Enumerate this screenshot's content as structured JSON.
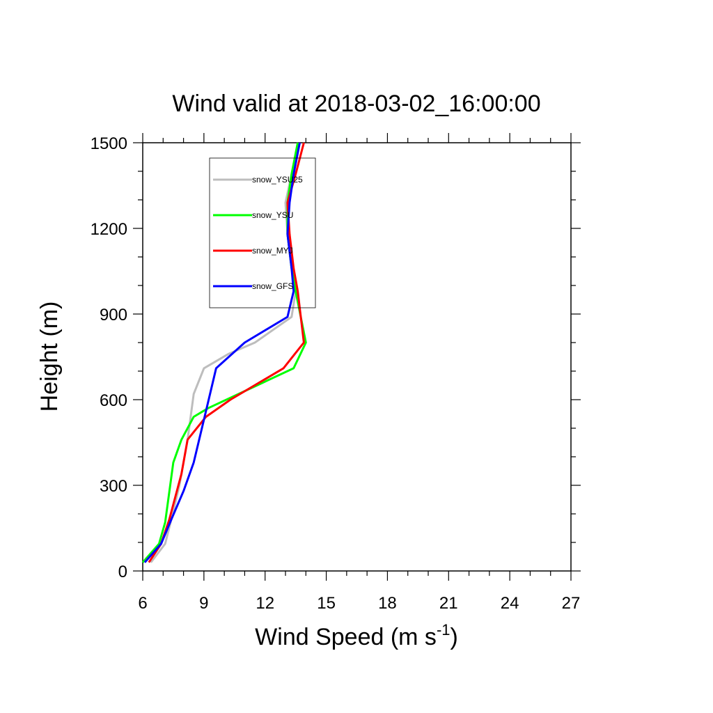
{
  "chart_data": {
    "type": "line",
    "title": "Wind valid at 2018-03-02_16:00:00",
    "xlabel": "Wind Speed (m s",
    "xlabel_sup": "-1",
    "xlabel_end": ")",
    "ylabel": "Height (m)",
    "xlim": [
      6,
      27
    ],
    "ylim": [
      0,
      1500
    ],
    "xticks": [
      6,
      9,
      12,
      15,
      18,
      21,
      24,
      27
    ],
    "yticks": [
      0,
      300,
      600,
      900,
      1200,
      1500
    ],
    "grid": false,
    "legend_position": "top-left",
    "series": [
      {
        "name": "snow_YSU25",
        "color": "#bdbdbd",
        "points": [
          [
            6.4,
            30
          ],
          [
            7.1,
            95
          ],
          [
            7.4,
            180
          ],
          [
            7.8,
            300
          ],
          [
            8.2,
            460
          ],
          [
            8.5,
            620
          ],
          [
            9.0,
            710
          ],
          [
            10.2,
            760
          ],
          [
            11.5,
            800
          ],
          [
            13.3,
            890
          ],
          [
            13.5,
            980
          ],
          [
            13.3,
            1060
          ],
          [
            13.1,
            1180
          ],
          [
            13.0,
            1290
          ],
          [
            13.3,
            1390
          ],
          [
            13.6,
            1500
          ]
        ]
      },
      {
        "name": "snow_YSU",
        "color": "#00ff00",
        "points": [
          [
            6.0,
            30
          ],
          [
            6.8,
            95
          ],
          [
            7.1,
            170
          ],
          [
            7.5,
            380
          ],
          [
            7.9,
            460
          ],
          [
            8.5,
            540
          ],
          [
            9.2,
            570
          ],
          [
            11.3,
            640
          ],
          [
            13.4,
            710
          ],
          [
            14.0,
            800
          ],
          [
            13.5,
            980
          ],
          [
            13.3,
            1060
          ],
          [
            13.1,
            1180
          ],
          [
            13.1,
            1290
          ],
          [
            13.3,
            1390
          ],
          [
            13.6,
            1500
          ]
        ]
      },
      {
        "name": "snow_MYJ",
        "color": "#ff0000",
        "points": [
          [
            6.3,
            30
          ],
          [
            6.9,
            95
          ],
          [
            7.3,
            180
          ],
          [
            7.9,
            340
          ],
          [
            8.2,
            460
          ],
          [
            9.1,
            540
          ],
          [
            10.3,
            600
          ],
          [
            12.9,
            710
          ],
          [
            13.9,
            800
          ],
          [
            13.6,
            980
          ],
          [
            13.4,
            1060
          ],
          [
            13.2,
            1180
          ],
          [
            13.1,
            1290
          ],
          [
            13.5,
            1390
          ],
          [
            13.9,
            1500
          ]
        ]
      },
      {
        "name": "snow_GFS",
        "color": "#0000ff",
        "points": [
          [
            6.1,
            30
          ],
          [
            6.9,
            95
          ],
          [
            7.4,
            180
          ],
          [
            8.0,
            280
          ],
          [
            8.5,
            380
          ],
          [
            9.0,
            530
          ],
          [
            9.6,
            710
          ],
          [
            11.0,
            800
          ],
          [
            13.1,
            890
          ],
          [
            13.4,
            980
          ],
          [
            13.3,
            1060
          ],
          [
            13.1,
            1180
          ],
          [
            13.2,
            1290
          ],
          [
            13.4,
            1390
          ],
          [
            13.7,
            1500
          ]
        ]
      }
    ]
  }
}
